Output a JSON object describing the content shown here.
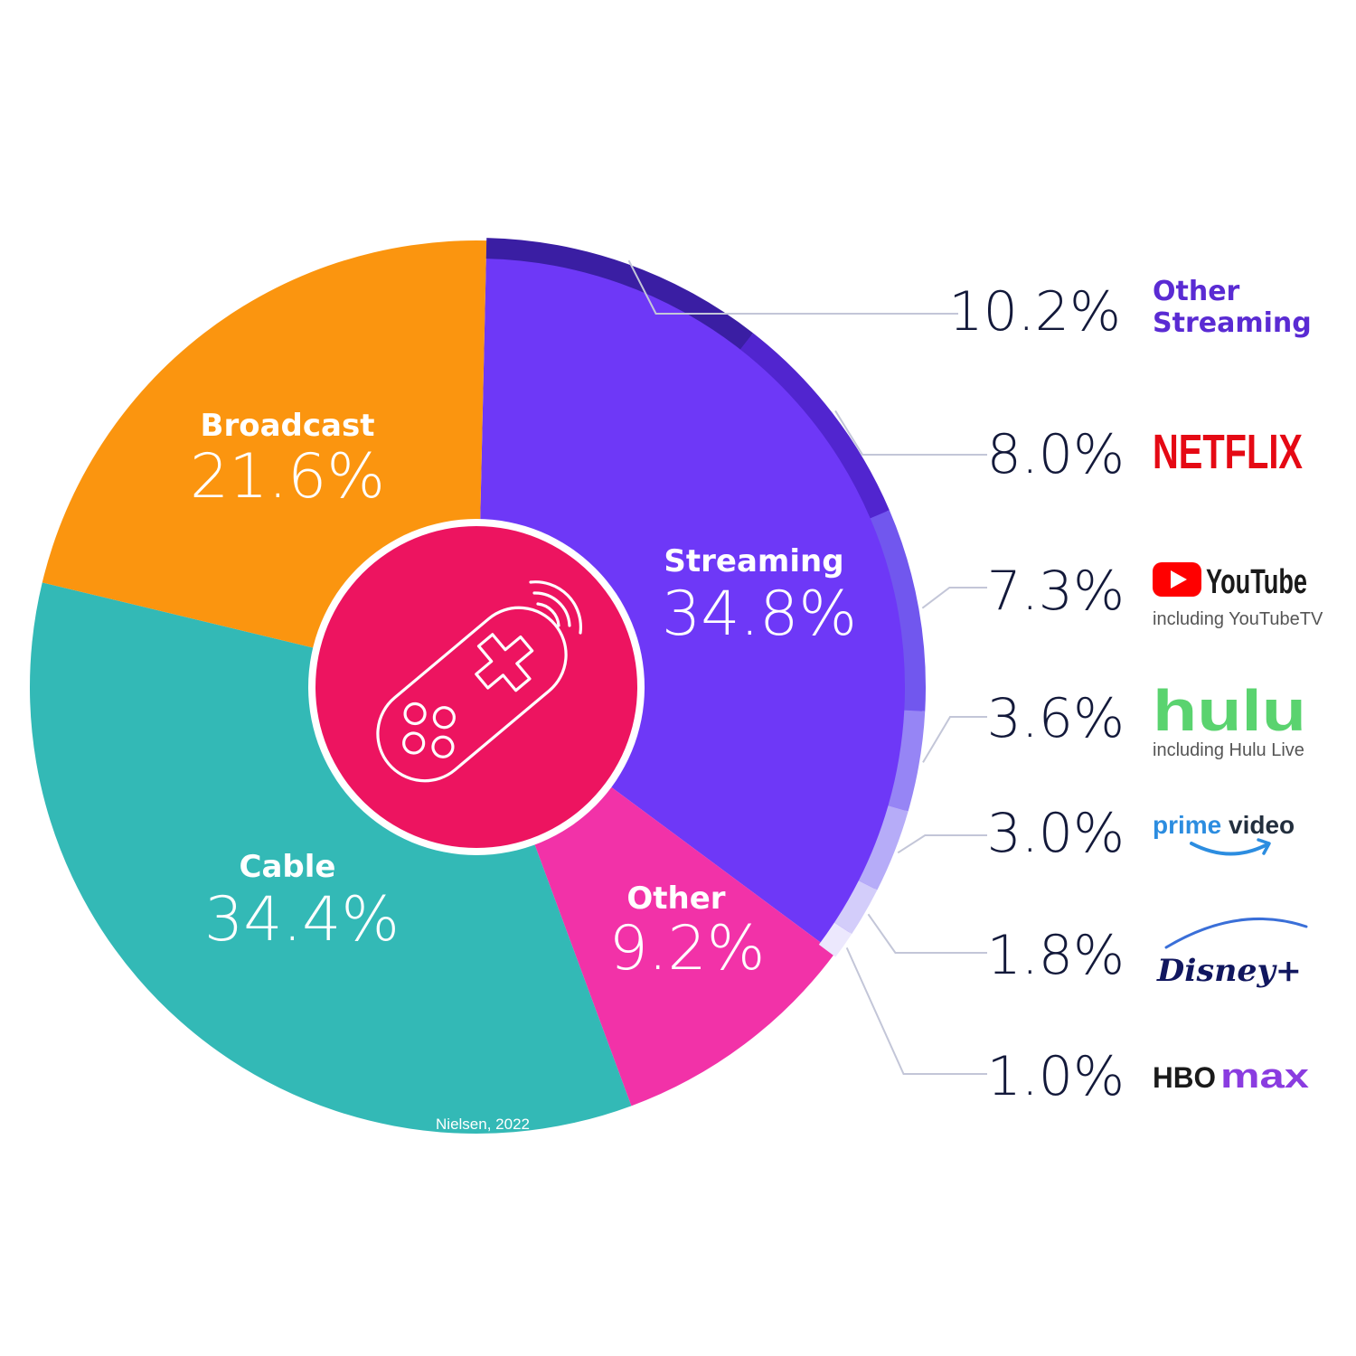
{
  "chart_data": {
    "type": "pie",
    "source": "Nielsen, 2022",
    "center_icon": "game-controller-remote-icon",
    "segments": [
      {
        "name": "Streaming",
        "value": 34.8,
        "label": "34.8%",
        "color": "#6e38f7"
      },
      {
        "name": "Other",
        "value": 9.2,
        "label": "9.2%",
        "color": "#f232a8"
      },
      {
        "name": "Cable",
        "value": 34.4,
        "label": "34.4%",
        "color": "#33b9b6"
      },
      {
        "name": "Broadcast",
        "value": 21.6,
        "label": "21.6%",
        "color": "#fb950f"
      }
    ],
    "streaming_breakdown": [
      {
        "name": "Other Streaming",
        "value": 10.2,
        "label": "10.2%",
        "color": "#3a1ea3"
      },
      {
        "name": "NETFLIX",
        "value": 8.0,
        "label": "8.0%",
        "color": "#5125cf"
      },
      {
        "name": "YouTube",
        "sublabel": "including YouTubeTV",
        "value": 7.3,
        "label": "7.3%",
        "color": "#7157ee"
      },
      {
        "name": "hulu",
        "sublabel": "including Hulu Live",
        "value": 3.6,
        "label": "3.6%",
        "color": "#9685f5"
      },
      {
        "name": "prime video",
        "value": 3.0,
        "label": "3.0%",
        "color": "#b6acf8"
      },
      {
        "name": "Disney+",
        "value": 1.8,
        "label": "1.8%",
        "color": "#d3cdfa"
      },
      {
        "name": "HBO max",
        "value": 1.0,
        "label": "1.0%",
        "color": "#ece8fd"
      }
    ],
    "colors": {
      "center_circle": "#ed1460",
      "leader_line": "#c3c6d8",
      "pct_text": "#13193a",
      "other_streaming_text": "#5a2bd3",
      "netflix": "#e50914",
      "youtube": "#ff0000",
      "hulu": "#5ad36f",
      "prime": "#2c8de0",
      "disney": "#11175f",
      "hbo": "#1a1a1a",
      "max": "#8a3ce0"
    }
  }
}
